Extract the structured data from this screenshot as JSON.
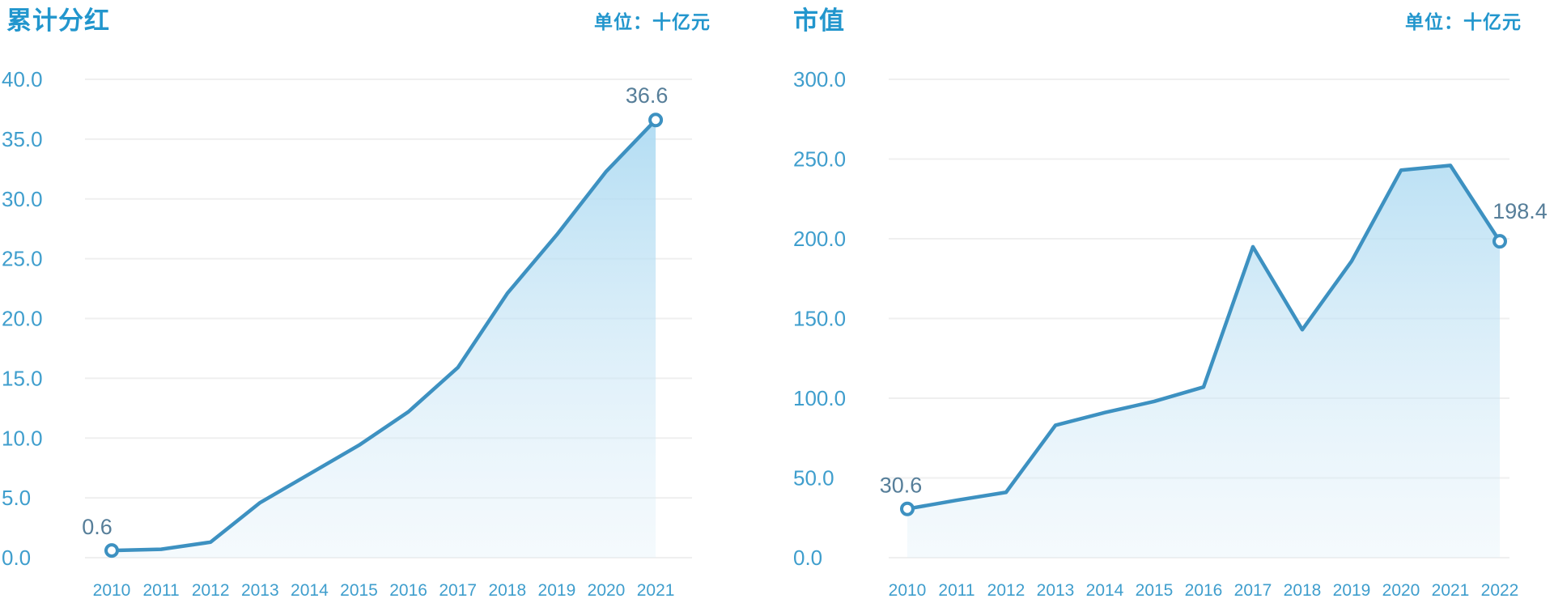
{
  "chart_data": [
    {
      "type": "area",
      "title": "累计分红",
      "unit": "单位：十亿元",
      "x": [
        "2010",
        "2011",
        "2012",
        "2013",
        "2014",
        "2015",
        "2016",
        "2017",
        "2018",
        "2019",
        "2020",
        "2021"
      ],
      "values": [
        0.6,
        0.7,
        1.3,
        4.6,
        7.0,
        9.4,
        12.2,
        15.9,
        22.1,
        27.0,
        32.3,
        36.6
      ],
      "ylim": [
        0,
        40
      ],
      "ytick_labels": [
        "40.0",
        "35.0",
        "30.0",
        "25.0",
        "20.0",
        "15.0",
        "10.0",
        "5.0",
        "0.0"
      ],
      "point_labels": {
        "first": "0.6",
        "last": "36.6"
      },
      "grid": true,
      "legend": "none",
      "xlabel": "",
      "ylabel": ""
    },
    {
      "type": "area",
      "title": "市值",
      "unit": "单位：十亿元",
      "x": [
        "2010",
        "2011",
        "2012",
        "2013",
        "2014",
        "2015",
        "2016",
        "2017",
        "2018",
        "2019",
        "2020",
        "2021",
        "2022"
      ],
      "values": [
        30.6,
        36.0,
        41.0,
        83.0,
        91.0,
        98.0,
        107.0,
        195.0,
        143.0,
        186.0,
        243.0,
        246.0,
        198.4
      ],
      "ylim": [
        0,
        300
      ],
      "ytick_labels": [
        "300.0",
        "250.0",
        "200.0",
        "150.0",
        "100.0",
        "50.0",
        "0.0"
      ],
      "point_labels": {
        "first": "30.6",
        "last": "198.4"
      },
      "grid": true,
      "legend": "none",
      "xlabel": "",
      "ylabel": ""
    }
  ],
  "colors": {
    "title": "#2296cd",
    "axis_tick": "#3f9ecd",
    "point_label": "#567e99",
    "line": "#3d91c1",
    "area_top": "#a5d7f1",
    "area_bottom": "#ddeef8",
    "grid": "#efefef",
    "background": "#ffffff"
  }
}
